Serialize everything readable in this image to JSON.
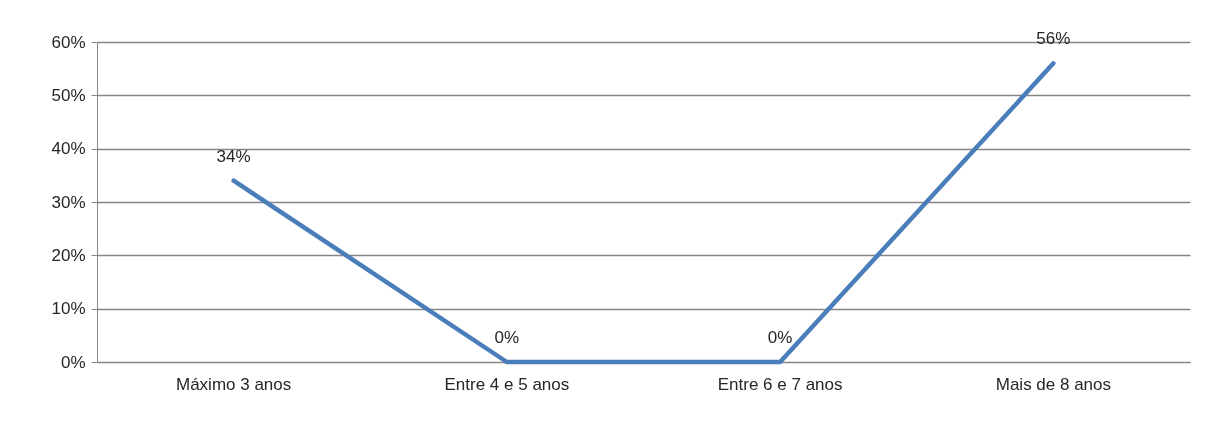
{
  "chart_data": {
    "type": "line",
    "categories": [
      "Máximo 3 anos",
      "Entre 4 e 5 anos",
      "Entre 6 e 7 anos",
      "Mais de 8 anos"
    ],
    "series": [
      {
        "color": "#4a7ebb",
        "values": [
          34,
          0,
          0,
          56
        ],
        "value_labels": [
          "34%",
          "0%",
          "0%",
          "56%"
        ]
      }
    ],
    "ylim": [
      0,
      60
    ],
    "yticks": [
      {
        "value": 0,
        "label": "0%"
      },
      {
        "value": 10,
        "label": "10%"
      },
      {
        "value": 20,
        "label": "20%"
      },
      {
        "value": 30,
        "label": "30%"
      },
      {
        "value": 40,
        "label": "40%"
      },
      {
        "value": 50,
        "label": "50%"
      },
      {
        "value": 60,
        "label": "60%"
      }
    ],
    "grid": "y",
    "marker": "none",
    "line_style": "solid"
  }
}
